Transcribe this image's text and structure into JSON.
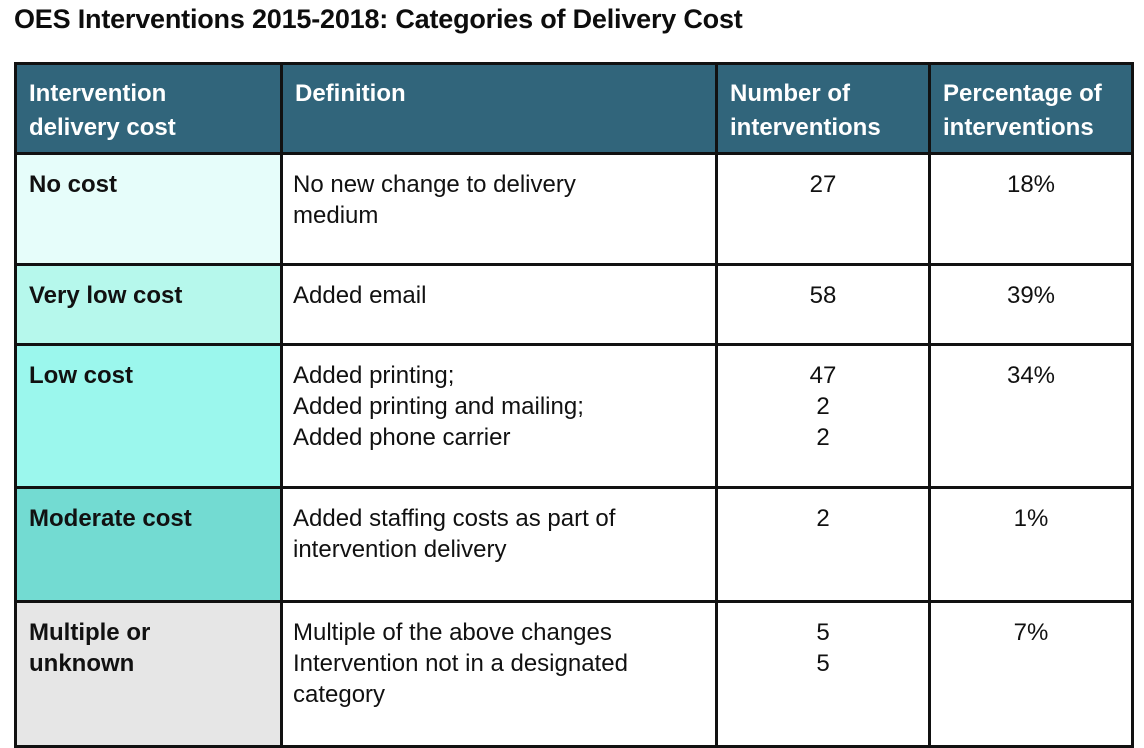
{
  "title": "OES Interventions 2015-2018: Categories of Delivery Cost",
  "table": {
    "headers": [
      [
        "Intervention",
        "delivery cost"
      ],
      [
        "Definition"
      ],
      [
        "Number of",
        "interventions"
      ],
      [
        "Percentage of",
        "interventions"
      ]
    ],
    "rows": [
      {
        "category": [
          "No cost"
        ],
        "category_color": "#e6fdfa",
        "definition": [
          "No new change to delivery",
          "medium"
        ],
        "numbers": [
          "27"
        ],
        "percentage": "18%"
      },
      {
        "category": [
          "Very low cost"
        ],
        "category_color": "#b6f8ec",
        "definition": [
          "Added email"
        ],
        "numbers": [
          "58"
        ],
        "percentage": "39%"
      },
      {
        "category": [
          "Low cost"
        ],
        "category_color": "#9bf7ed",
        "definition": [
          "Added printing;",
          "Added printing and mailing;",
          "Added phone carrier"
        ],
        "numbers": [
          "47",
          "2",
          "2"
        ],
        "percentage": "34%"
      },
      {
        "category": [
          "Moderate cost"
        ],
        "category_color": "#73dbd2",
        "definition": [
          "Added staffing costs as part of",
          "intervention delivery"
        ],
        "numbers": [
          "2"
        ],
        "percentage": "1%"
      },
      {
        "category": [
          "Multiple or",
          "unknown"
        ],
        "category_color": "#e6e6e6",
        "definition": [
          "Multiple of the above changes",
          "Intervention not in a designated",
          "category"
        ],
        "numbers": [
          "5",
          "5"
        ],
        "percentage": "7%"
      }
    ]
  },
  "colors": {
    "header_bg": "#31657b",
    "header_text": "#ffffff",
    "border": "#111111"
  }
}
